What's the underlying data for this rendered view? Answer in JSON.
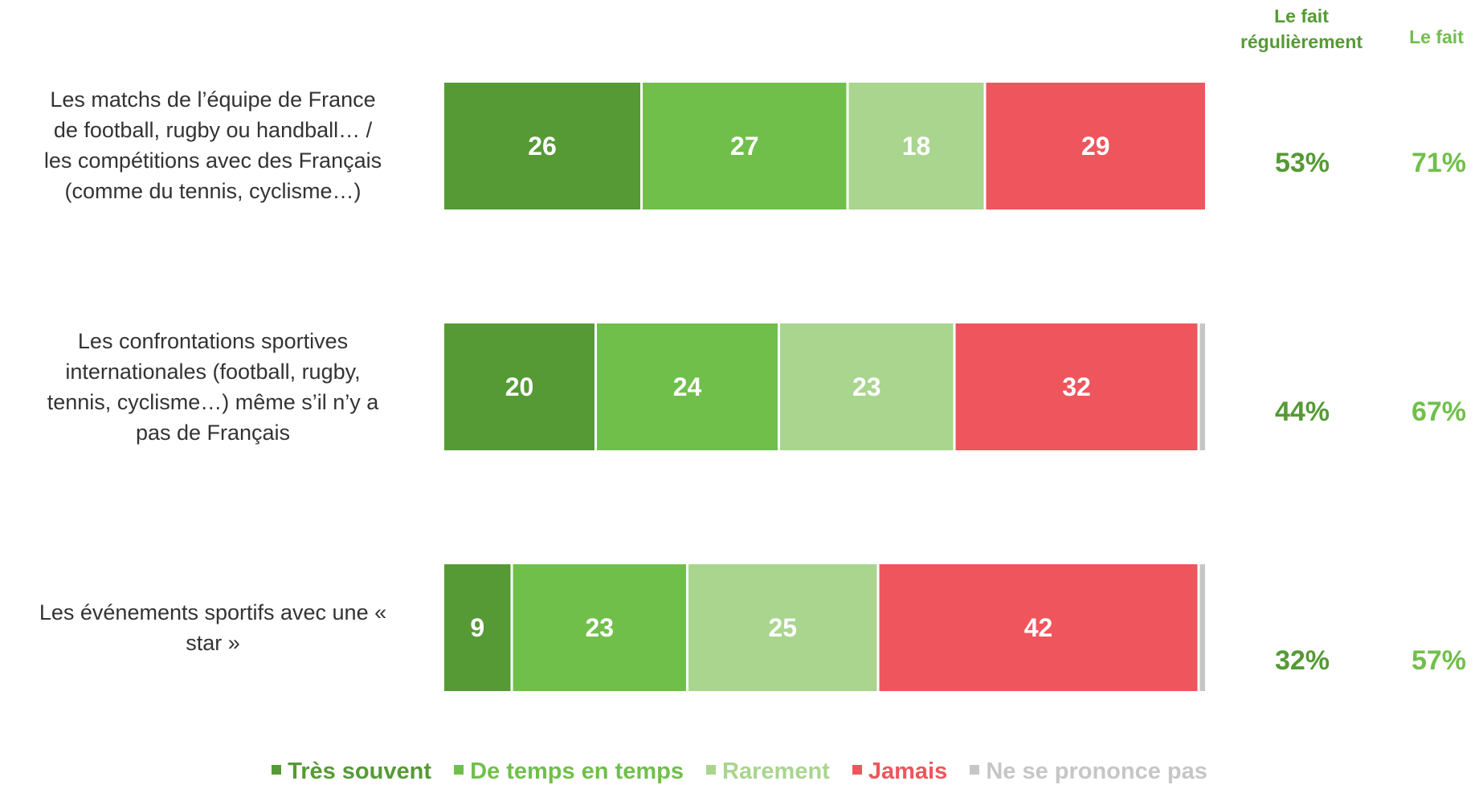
{
  "chart_data": {
    "type": "bar",
    "orientation": "horizontal",
    "stacked": true,
    "categories": [
      "Les matchs de l’équipe de France de football, rugby ou handball… / les compétitions avec des Français (comme du tennis, cyclisme…)",
      "Les confrontations sportives internationales (football, rugby, tennis, cyclisme…) même s’il n’y a pas de Français",
      "Les événements sportifs avec une « star »"
    ],
    "series": [
      {
        "name": "Très souvent",
        "color": "#559a35",
        "values": [
          26,
          20,
          9
        ],
        "labels": [
          "26",
          "20",
          "9"
        ]
      },
      {
        "name": "De temps en temps",
        "color": "#70bf4b",
        "values": [
          27,
          24,
          23
        ],
        "labels": [
          "27",
          "24",
          "23"
        ]
      },
      {
        "name": "Rarement",
        "color": "#a9d58e",
        "values": [
          18,
          23,
          25
        ],
        "labels": [
          "18",
          "23",
          "25"
        ]
      },
      {
        "name": "Jamais",
        "color": "#ef555c",
        "values": [
          29,
          32,
          42
        ],
        "labels": [
          "29",
          "32",
          "42"
        ]
      },
      {
        "name": "Ne se prononce pas",
        "color": "#c6c6c6",
        "values": [
          0,
          1,
          1
        ],
        "labels": [
          "",
          "1",
          "1"
        ]
      }
    ],
    "xlim": [
      0,
      100
    ],
    "legend": "bottom",
    "grid": false,
    "side_columns": [
      {
        "header_line1": "Le fait",
        "header_line2": "régulièrement",
        "color": "#559a35",
        "values": [
          "53%",
          "44%",
          "32%"
        ]
      },
      {
        "header_line1": "Le fait",
        "header_line2": "",
        "color": "#70bf4b",
        "values": [
          "71%",
          "67%",
          "57%"
        ]
      }
    ]
  },
  "rows": [
    {
      "label_lines": [
        "Les matchs de l’équipe de France",
        "de football, rugby ou handball… /",
        "les compétitions avec des Français",
        "(comme du tennis, cyclisme…)"
      ]
    },
    {
      "label_lines": [
        "Les confrontations sportives",
        "internationales (football, rugby,",
        "tennis, cyclisme…) même s’il n’y a",
        "pas de Français"
      ]
    },
    {
      "label_lines": [
        "Les événements sportifs avec une «",
        "star »"
      ]
    }
  ]
}
